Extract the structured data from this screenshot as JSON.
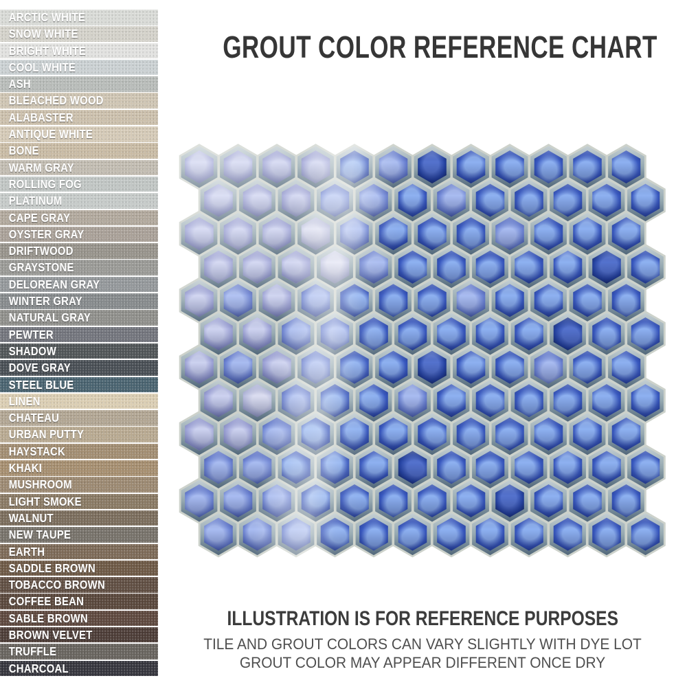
{
  "title": "GROUT COLOR REFERENCE CHART",
  "footer": {
    "heading": "ILLUSTRATION IS FOR REFERENCE PURPOSES",
    "line1": "TILE AND GROUT COLORS CAN VARY SLIGHTLY WITH DYE LOT",
    "line2": "GROUT COLOR MAY APPEAR DIFFERENT ONCE DRY"
  },
  "swatches": [
    {
      "name": "ARCTIC WHITE",
      "color": "#d9dbd7"
    },
    {
      "name": "SNOW WHITE",
      "color": "#d4d2ca"
    },
    {
      "name": "BRIGHT WHITE",
      "color": "#e2e2e0"
    },
    {
      "name": "COOL WHITE",
      "color": "#cbd1d3"
    },
    {
      "name": "ASH",
      "color": "#b8bcb9"
    },
    {
      "name": "BLEACHED WOOD",
      "color": "#cfc5b3"
    },
    {
      "name": "ALABASTER",
      "color": "#ccc0ac"
    },
    {
      "name": "ANTIQUE WHITE",
      "color": "#d5cab7"
    },
    {
      "name": "BONE",
      "color": "#c9bba4"
    },
    {
      "name": "WARM GRAY",
      "color": "#c2bcb1"
    },
    {
      "name": "ROLLING FOG",
      "color": "#c1c6c4"
    },
    {
      "name": "PLATINUM",
      "color": "#c6cbc9"
    },
    {
      "name": "CAPE GRAY",
      "color": "#b1a89c"
    },
    {
      "name": "OYSTER GRAY",
      "color": "#a9a097"
    },
    {
      "name": "DRIFTWOOD",
      "color": "#96928a"
    },
    {
      "name": "GRAYSTONE",
      "color": "#999995"
    },
    {
      "name": "DELOREAN GRAY",
      "color": "#93979a"
    },
    {
      "name": "WINTER GRAY",
      "color": "#85898b"
    },
    {
      "name": "NATURAL GRAY",
      "color": "#8e8e8a"
    },
    {
      "name": "PEWTER",
      "color": "#71737b"
    },
    {
      "name": "SHADOW",
      "color": "#4e5355"
    },
    {
      "name": "DOVE GRAY",
      "color": "#464c52"
    },
    {
      "name": "STEEL BLUE",
      "color": "#47616e"
    },
    {
      "name": "LINEN",
      "color": "#dbceb3"
    },
    {
      "name": "CHATEAU",
      "color": "#b1a592"
    },
    {
      "name": "URBAN PUTTY",
      "color": "#b8a990"
    },
    {
      "name": "HAYSTACK",
      "color": "#a18c70"
    },
    {
      "name": "KHAKI",
      "color": "#a58d6e"
    },
    {
      "name": "MUSHROOM",
      "color": "#9b8870"
    },
    {
      "name": "LIGHT SMOKE",
      "color": "#887862"
    },
    {
      "name": "WALNUT",
      "color": "#796b5a"
    },
    {
      "name": "NEW TAUPE",
      "color": "#757068"
    },
    {
      "name": "EARTH",
      "color": "#7b6855"
    },
    {
      "name": "SADDLE BROWN",
      "color": "#6c5743"
    },
    {
      "name": "TOBACCO BROWN",
      "color": "#5e4c40"
    },
    {
      "name": "COFFEE BEAN",
      "color": "#574539"
    },
    {
      "name": "SABLE BROWN",
      "color": "#5c463c"
    },
    {
      "name": "BROWN VELVET",
      "color": "#4a3a34"
    },
    {
      "name": "TRUFFLE",
      "color": "#66625c"
    },
    {
      "name": "CHARCOAL",
      "color": "#33333b"
    }
  ],
  "mosaic": {
    "description": "blue hexagon penny tile mosaic",
    "rows": 12,
    "cols": 12,
    "grout_color": "#cdd2cb",
    "rim_colors": [
      "#c4cfd3",
      "#95a8b0",
      "#51677a"
    ],
    "shades": {
      "P": [
        "#cdd2f0",
        "#a2a7da",
        "#7b81bc"
      ],
      "W": [
        "#dcdef1",
        "#bdc1e1",
        "#999dc9"
      ],
      "M": [
        "#a9bcf1",
        "#6e85d5",
        "#4557ad"
      ],
      "D": [
        "#8eb1f1",
        "#3a5ac1",
        "#1d3896"
      ],
      "X": [
        "#5472cd",
        "#2543a3",
        "#122355"
      ]
    },
    "grid": [
      "PPPPDMXDDDDD",
      "PPPMMDMDDDDD",
      "PPPWMDDDMDDD",
      "PPPWMDDDDDXD",
      "PMPMDDDMDDDD",
      "PPMMDDDDDXDD",
      "PMPMDDXDDMDD",
      "PWMDDMDDDDDD",
      "PPMDDDDDDDDD",
      "MMDDDXDDDDDD",
      "MMMDDDDDXDDD",
      "MMMDDDDDDDDD"
    ]
  }
}
